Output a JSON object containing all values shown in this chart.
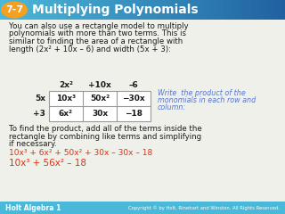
{
  "title_grad_left": "#4ab8d8",
  "title_grad_right": "#2060a0",
  "title_number": "7-7",
  "title_number_bg": "#f5a020",
  "title_text": "Multiplying Polynomials",
  "title_text_color": "#ffffff",
  "body_bg": "#f0f0ea",
  "body_text_color": "#1a1a1a",
  "para1_line1": "You can also use a rectangle model to multiply",
  "para1_line2": "polynomials with more than two terms. This is",
  "para1_line3": "similar to finding the area of a rectangle with",
  "para1_line4": "length (2x² + 10x – 6) and width (5x + 3):",
  "table_header": [
    "2x²",
    "+10x",
    "–6"
  ],
  "table_row_labels": [
    "5x",
    "+3"
  ],
  "table_cells": [
    [
      "10x³",
      "50x²",
      "−30x"
    ],
    [
      "6x²",
      "30x",
      "−18"
    ]
  ],
  "side_note_color": "#5577cc",
  "side_note_line1": "Write  the product of the",
  "side_note_line2": "monomials in each row and",
  "side_note_line3": "column:",
  "para2_line1": "To find the product, add all of the terms inside the",
  "para2_line2": "rectangle by combining like terms and simplifying",
  "para2_line3": "if necessary.",
  "eq1_color": "#e03010",
  "eq1": "10x³ + 6x² + 50x² + 30x – 30x – 18",
  "eq2_color": "#e03010",
  "eq2": "10x³ + 56x² – 18",
  "footer_bg": "#4ab8d8",
  "footer_text": "Holt Algebra 1",
  "footer_copyright": "Copyright © by Holt, Rinehart and Winston. All Rights Reserved.",
  "footer_text_color": "#ffffff",
  "table_border_color": "#999999",
  "table_bg": "#ffffff"
}
